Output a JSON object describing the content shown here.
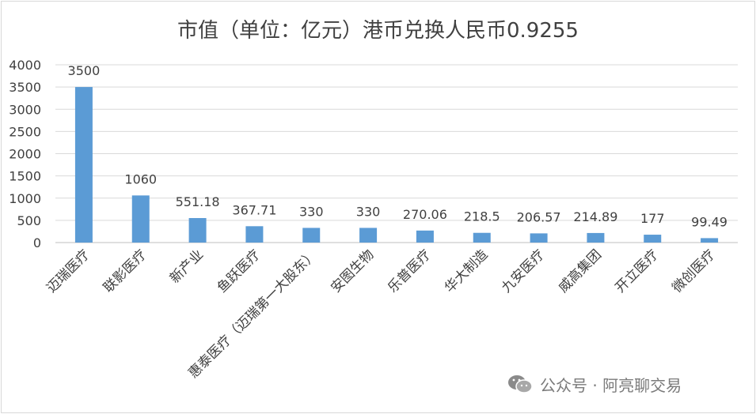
{
  "chart_data": {
    "type": "bar",
    "title": "市值（单位：亿元）港币兑换人民币0.9255",
    "categories": [
      "迈瑞医疗",
      "联影医疗",
      "新产业",
      "鱼跃医疗",
      "惠泰医疗（迈瑞第一大股东）",
      "安图生物",
      "乐普医疗",
      "华大制造",
      "九安医疗",
      "威高集团",
      "开立医疗",
      "微创医疗"
    ],
    "values": [
      3500,
      1060,
      551.18,
      367.71,
      330,
      330,
      270.06,
      218.5,
      206.57,
      214.89,
      177,
      99.49
    ],
    "data_labels": [
      "3500",
      "1060",
      "551.18",
      "367.71",
      "330",
      "330",
      "270.06",
      "218.5",
      "206.57",
      "214.89",
      "177",
      "99.49"
    ],
    "y_ticks": [
      "0",
      "500",
      "1000",
      "1500",
      "2000",
      "2500",
      "3000",
      "3500",
      "4000"
    ],
    "ylim": [
      0,
      4000
    ],
    "grid": true,
    "legend": "none",
    "bar_color": "#5b9bd5",
    "grid_color": "#d9d9d9"
  },
  "watermark": {
    "text": "公众号 · 阿亮聊交易",
    "icon": "wechat-icon"
  }
}
